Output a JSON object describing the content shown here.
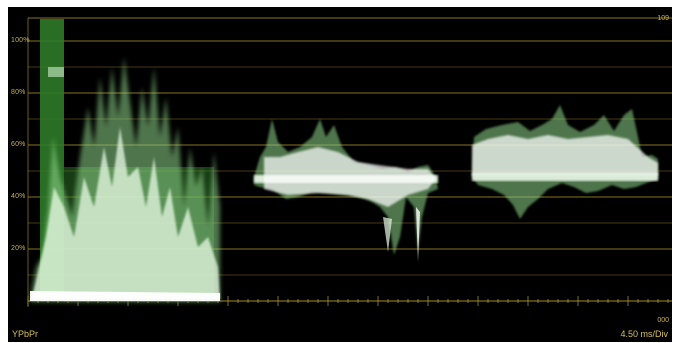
{
  "scale": {
    "ticks": [
      {
        "value": 100,
        "label": "100%"
      },
      {
        "value": 80,
        "label": "80%"
      },
      {
        "value": 60,
        "label": "60%"
      },
      {
        "value": 40,
        "label": "40%"
      },
      {
        "value": 20,
        "label": "20%"
      }
    ],
    "top_right_label": "109",
    "bottom_right_label": "000"
  },
  "status": {
    "mode": "YPbPr",
    "timebase": "4.50 ms/Div"
  },
  "colors": {
    "background": "#000000",
    "graticule": "#b39a2e",
    "label": "#d8c25a",
    "trace": "#eafbe8",
    "trace_dim": "#3f8f3a"
  }
}
